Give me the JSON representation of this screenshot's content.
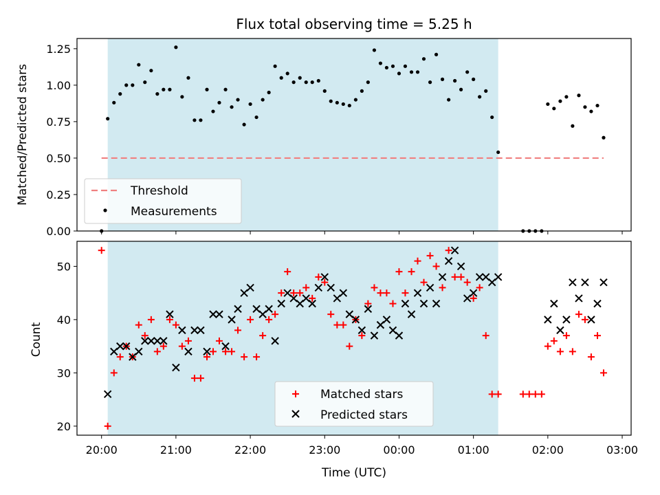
{
  "title": "Flux total observing time = 5.25 h",
  "xlabel": "Time (UTC)",
  "colors": {
    "shade": "#add8e6",
    "threshold": "#f08080",
    "measurements": "#000000",
    "matched": "#ff0000",
    "predicted": "#000000"
  },
  "chart_data": [
    {
      "type": "scatter",
      "ylabel": "Matched/Predicted stars",
      "ylim": [
        0,
        1.32
      ],
      "yticks": [
        0.0,
        0.25,
        0.5,
        0.75,
        1.0,
        1.25
      ],
      "ytick_labels": [
        "0.00",
        "0.25",
        "0.50",
        "0.75",
        "1.00",
        "1.25"
      ],
      "x_unit": "hours after 20:00 UTC",
      "xlim": [
        -0.33,
        7.12
      ],
      "shaded_span": [
        0.083,
        5.333
      ],
      "legend": {
        "position": "lower-left",
        "entries": [
          "Threshold",
          "Measurements"
        ]
      },
      "threshold": {
        "name": "Threshold",
        "value": 0.5,
        "x": [
          0.0,
          6.75
        ]
      },
      "series": [
        {
          "name": "Measurements",
          "x": [
            0.0,
            0.083,
            0.167,
            0.25,
            0.333,
            0.417,
            0.5,
            0.583,
            0.667,
            0.75,
            0.833,
            0.917,
            1.0,
            1.083,
            1.167,
            1.25,
            1.333,
            1.417,
            1.5,
            1.583,
            1.667,
            1.75,
            1.833,
            1.917,
            2.0,
            2.083,
            2.167,
            2.25,
            2.333,
            2.417,
            2.5,
            2.583,
            2.667,
            2.75,
            2.833,
            2.917,
            3.0,
            3.083,
            3.167,
            3.25,
            3.333,
            3.417,
            3.5,
            3.583,
            3.667,
            3.75,
            3.833,
            3.917,
            4.0,
            4.083,
            4.167,
            4.25,
            4.333,
            4.417,
            4.5,
            4.583,
            4.667,
            4.75,
            4.833,
            4.917,
            5.0,
            5.083,
            5.167,
            5.25,
            5.333,
            5.667,
            5.75,
            5.833,
            5.917,
            6.0,
            6.083,
            6.167,
            6.25,
            6.333,
            6.417,
            6.5,
            6.583,
            6.667,
            6.75
          ],
          "y": [
            0.0,
            0.77,
            0.88,
            0.94,
            1.0,
            1.0,
            1.14,
            1.02,
            1.1,
            0.94,
            0.97,
            0.97,
            1.26,
            0.92,
            1.05,
            0.76,
            0.76,
            0.97,
            0.82,
            0.88,
            0.97,
            0.85,
            0.9,
            0.73,
            0.87,
            0.78,
            0.9,
            0.95,
            1.13,
            1.05,
            1.08,
            1.02,
            1.05,
            1.02,
            1.02,
            1.03,
            0.96,
            0.89,
            0.88,
            0.87,
            0.86,
            0.9,
            0.96,
            1.02,
            1.24,
            1.15,
            1.12,
            1.13,
            1.08,
            1.13,
            1.09,
            1.09,
            1.18,
            1.02,
            1.21,
            1.04,
            0.9,
            1.03,
            0.97,
            1.09,
            1.04,
            0.92,
            0.96,
            0.78,
            0.54,
            0.0,
            0.0,
            0.0,
            0.0,
            0.87,
            0.84,
            0.89,
            0.92,
            0.72,
            0.93,
            0.85,
            0.82,
            0.86,
            0.64
          ]
        }
      ]
    },
    {
      "type": "scatter",
      "ylabel": "Count",
      "ylim": [
        18.3,
        54.7
      ],
      "yticks": [
        20,
        30,
        40,
        50
      ],
      "ytick_labels": [
        "20",
        "30",
        "40",
        "50"
      ],
      "x_unit": "hours after 20:00 UTC",
      "xlim": [
        -0.33,
        7.12
      ],
      "xticks": [
        0,
        1,
        2,
        3,
        4,
        5,
        6,
        7
      ],
      "xtick_labels": [
        "20:00",
        "21:00",
        "22:00",
        "23:00",
        "00:00",
        "01:00",
        "02:00",
        "03:00"
      ],
      "shaded_span": [
        0.083,
        5.333
      ],
      "legend": {
        "position": "lower-center",
        "entries": [
          "Matched stars",
          "Predicted stars"
        ]
      },
      "series": [
        {
          "name": "Matched stars",
          "x": [
            0.0,
            0.083,
            0.167,
            0.25,
            0.333,
            0.417,
            0.5,
            0.583,
            0.667,
            0.75,
            0.833,
            0.917,
            1.0,
            1.083,
            1.167,
            1.25,
            1.333,
            1.417,
            1.5,
            1.583,
            1.667,
            1.75,
            1.833,
            1.917,
            2.0,
            2.083,
            2.167,
            2.25,
            2.333,
            2.417,
            2.5,
            2.583,
            2.667,
            2.75,
            2.833,
            2.917,
            3.0,
            3.083,
            3.167,
            3.25,
            3.333,
            3.417,
            3.5,
            3.583,
            3.667,
            3.75,
            3.833,
            3.917,
            4.0,
            4.083,
            4.167,
            4.25,
            4.333,
            4.417,
            4.5,
            4.583,
            4.667,
            4.75,
            4.833,
            4.917,
            5.0,
            5.083,
            5.167,
            5.25,
            5.333,
            5.667,
            5.75,
            5.833,
            5.917,
            6.0,
            6.083,
            6.167,
            6.25,
            6.333,
            6.417,
            6.5,
            6.583,
            6.667,
            6.75
          ],
          "y": [
            53,
            20,
            30,
            33,
            35,
            33,
            39,
            37,
            40,
            34,
            35,
            40,
            39,
            35,
            36,
            29,
            29,
            33,
            34,
            36,
            34,
            34,
            38,
            33,
            40,
            33,
            37,
            40,
            41,
            45,
            49,
            45,
            45,
            46,
            44,
            48,
            47,
            41,
            39,
            39,
            35,
            40,
            37,
            43,
            46,
            45,
            45,
            43,
            49,
            45,
            49,
            51,
            47,
            52,
            50,
            46,
            53,
            48,
            48,
            47,
            44,
            46,
            37,
            26,
            26,
            26,
            26,
            26,
            26,
            35,
            36,
            34,
            37,
            34,
            41,
            40,
            33,
            37,
            30
          ]
        },
        {
          "name": "Predicted stars",
          "x": [
            0.083,
            0.167,
            0.25,
            0.333,
            0.417,
            0.5,
            0.583,
            0.667,
            0.75,
            0.833,
            0.917,
            1.0,
            1.083,
            1.167,
            1.25,
            1.333,
            1.417,
            1.5,
            1.583,
            1.667,
            1.75,
            1.833,
            1.917,
            2.0,
            2.083,
            2.167,
            2.25,
            2.333,
            2.417,
            2.5,
            2.583,
            2.667,
            2.75,
            2.833,
            2.917,
            3.0,
            3.083,
            3.167,
            3.25,
            3.333,
            3.417,
            3.5,
            3.583,
            3.667,
            3.75,
            3.833,
            3.917,
            4.0,
            4.083,
            4.167,
            4.25,
            4.333,
            4.417,
            4.5,
            4.583,
            4.667,
            4.75,
            4.833,
            4.917,
            5.0,
            5.083,
            5.167,
            5.25,
            5.333,
            6.0,
            6.083,
            6.167,
            6.25,
            6.333,
            6.417,
            6.5,
            6.583,
            6.667,
            6.75
          ],
          "y": [
            26,
            34,
            35,
            35,
            33,
            34,
            36,
            36,
            36,
            36,
            41,
            31,
            38,
            34,
            38,
            38,
            34,
            41,
            41,
            35,
            40,
            42,
            45,
            46,
            42,
            41,
            42,
            36,
            43,
            45,
            44,
            43,
            44,
            43,
            46,
            48,
            46,
            44,
            45,
            41,
            40,
            38,
            42,
            37,
            39,
            40,
            38,
            37,
            43,
            41,
            45,
            43,
            46,
            43,
            48,
            51,
            53,
            50,
            44,
            45,
            48,
            48,
            47,
            48,
            40,
            43,
            38,
            40,
            47,
            44,
            47,
            40,
            43,
            47
          ]
        }
      ]
    }
  ]
}
